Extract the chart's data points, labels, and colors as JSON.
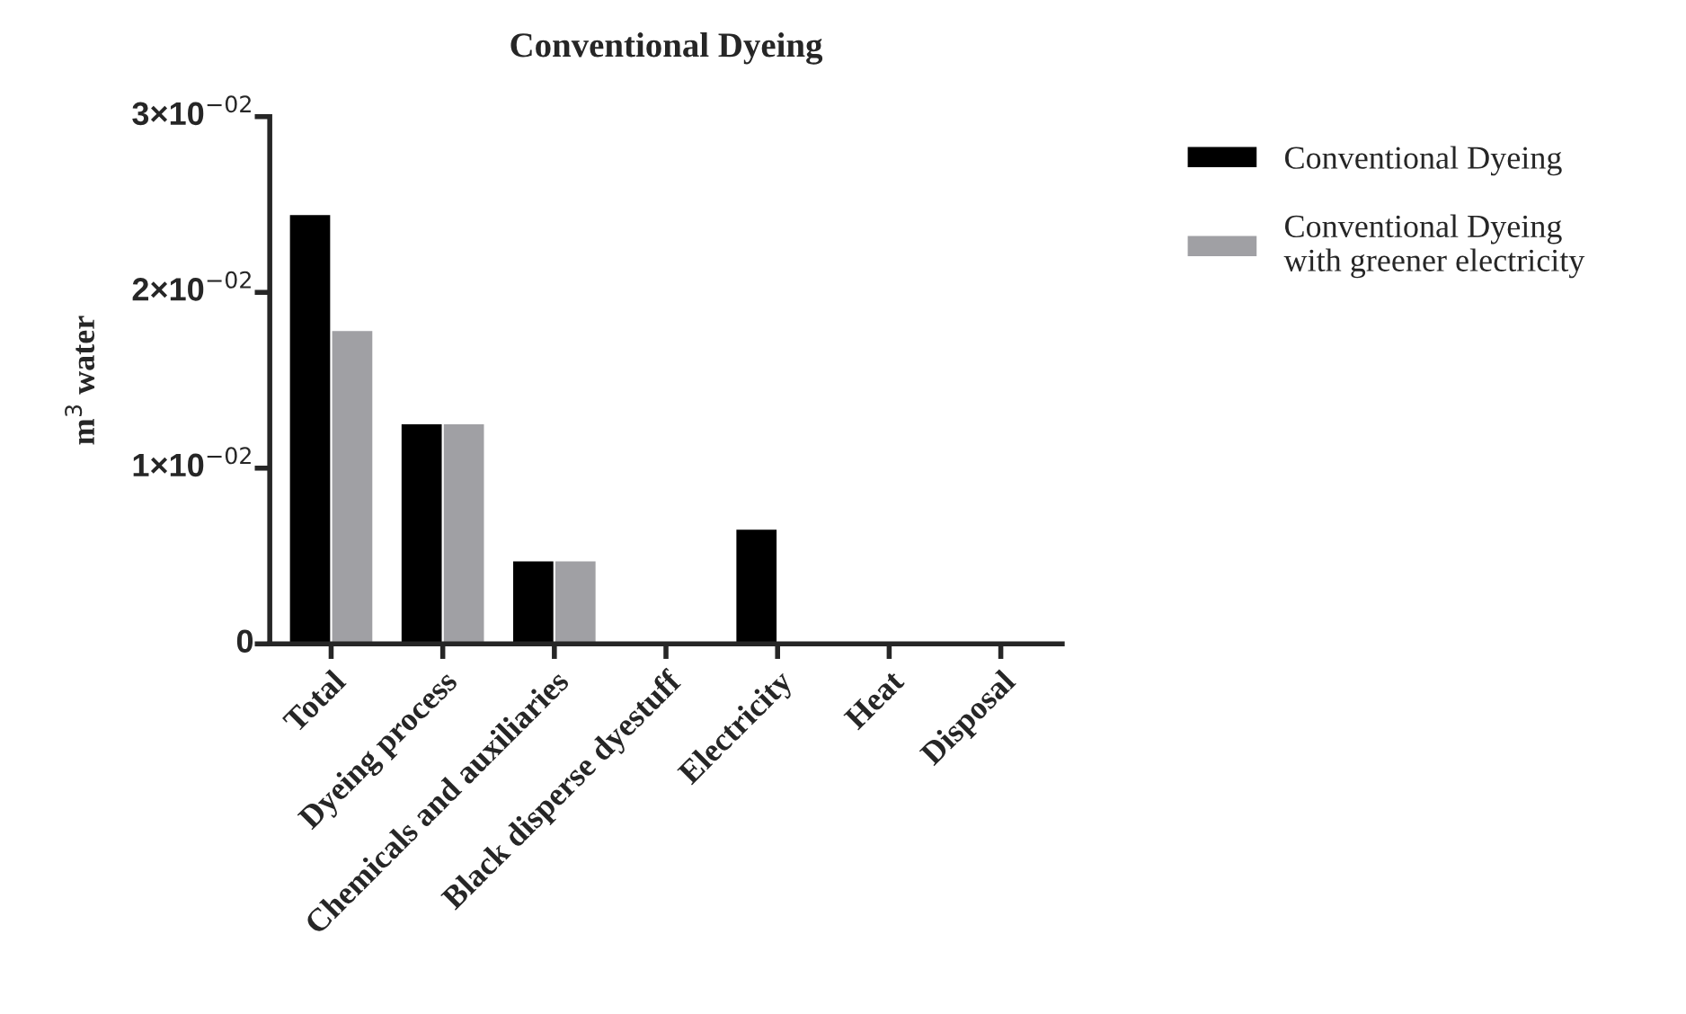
{
  "chart_data": {
    "type": "bar",
    "title": "Conventional Dyeing",
    "ylabel": "m$^{3}$ water",
    "categories": [
      "Total",
      "Dyeing process",
      "Chemicals and auxiliaries",
      "Black disperse dyestuff",
      "Electricity",
      "Heat",
      "Disposal"
    ],
    "series": [
      {
        "name": "Conventional Dyeing",
        "color": "#000000",
        "values": [
          0.0244,
          0.0125,
          0.0047,
          0.0001,
          0.0065,
          0,
          0
        ]
      },
      {
        "name": "Conventional Dyeing\nwith greener electricity",
        "color": "#a0a0a4",
        "values": [
          0.0178,
          0.0125,
          0.0047,
          0.0001,
          0,
          0,
          0
        ]
      }
    ],
    "ylim": [
      0,
      0.03
    ],
    "yticks": [
      0,
      {
        "value": 0.01,
        "label": "1×10$^{−02}$"
      },
      {
        "value": 0.02,
        "label": "2×10$^{−02}$"
      },
      {
        "value": 0.03,
        "label": "3×10$^{−02}$"
      }
    ],
    "grid": false,
    "legend": "top right"
  }
}
